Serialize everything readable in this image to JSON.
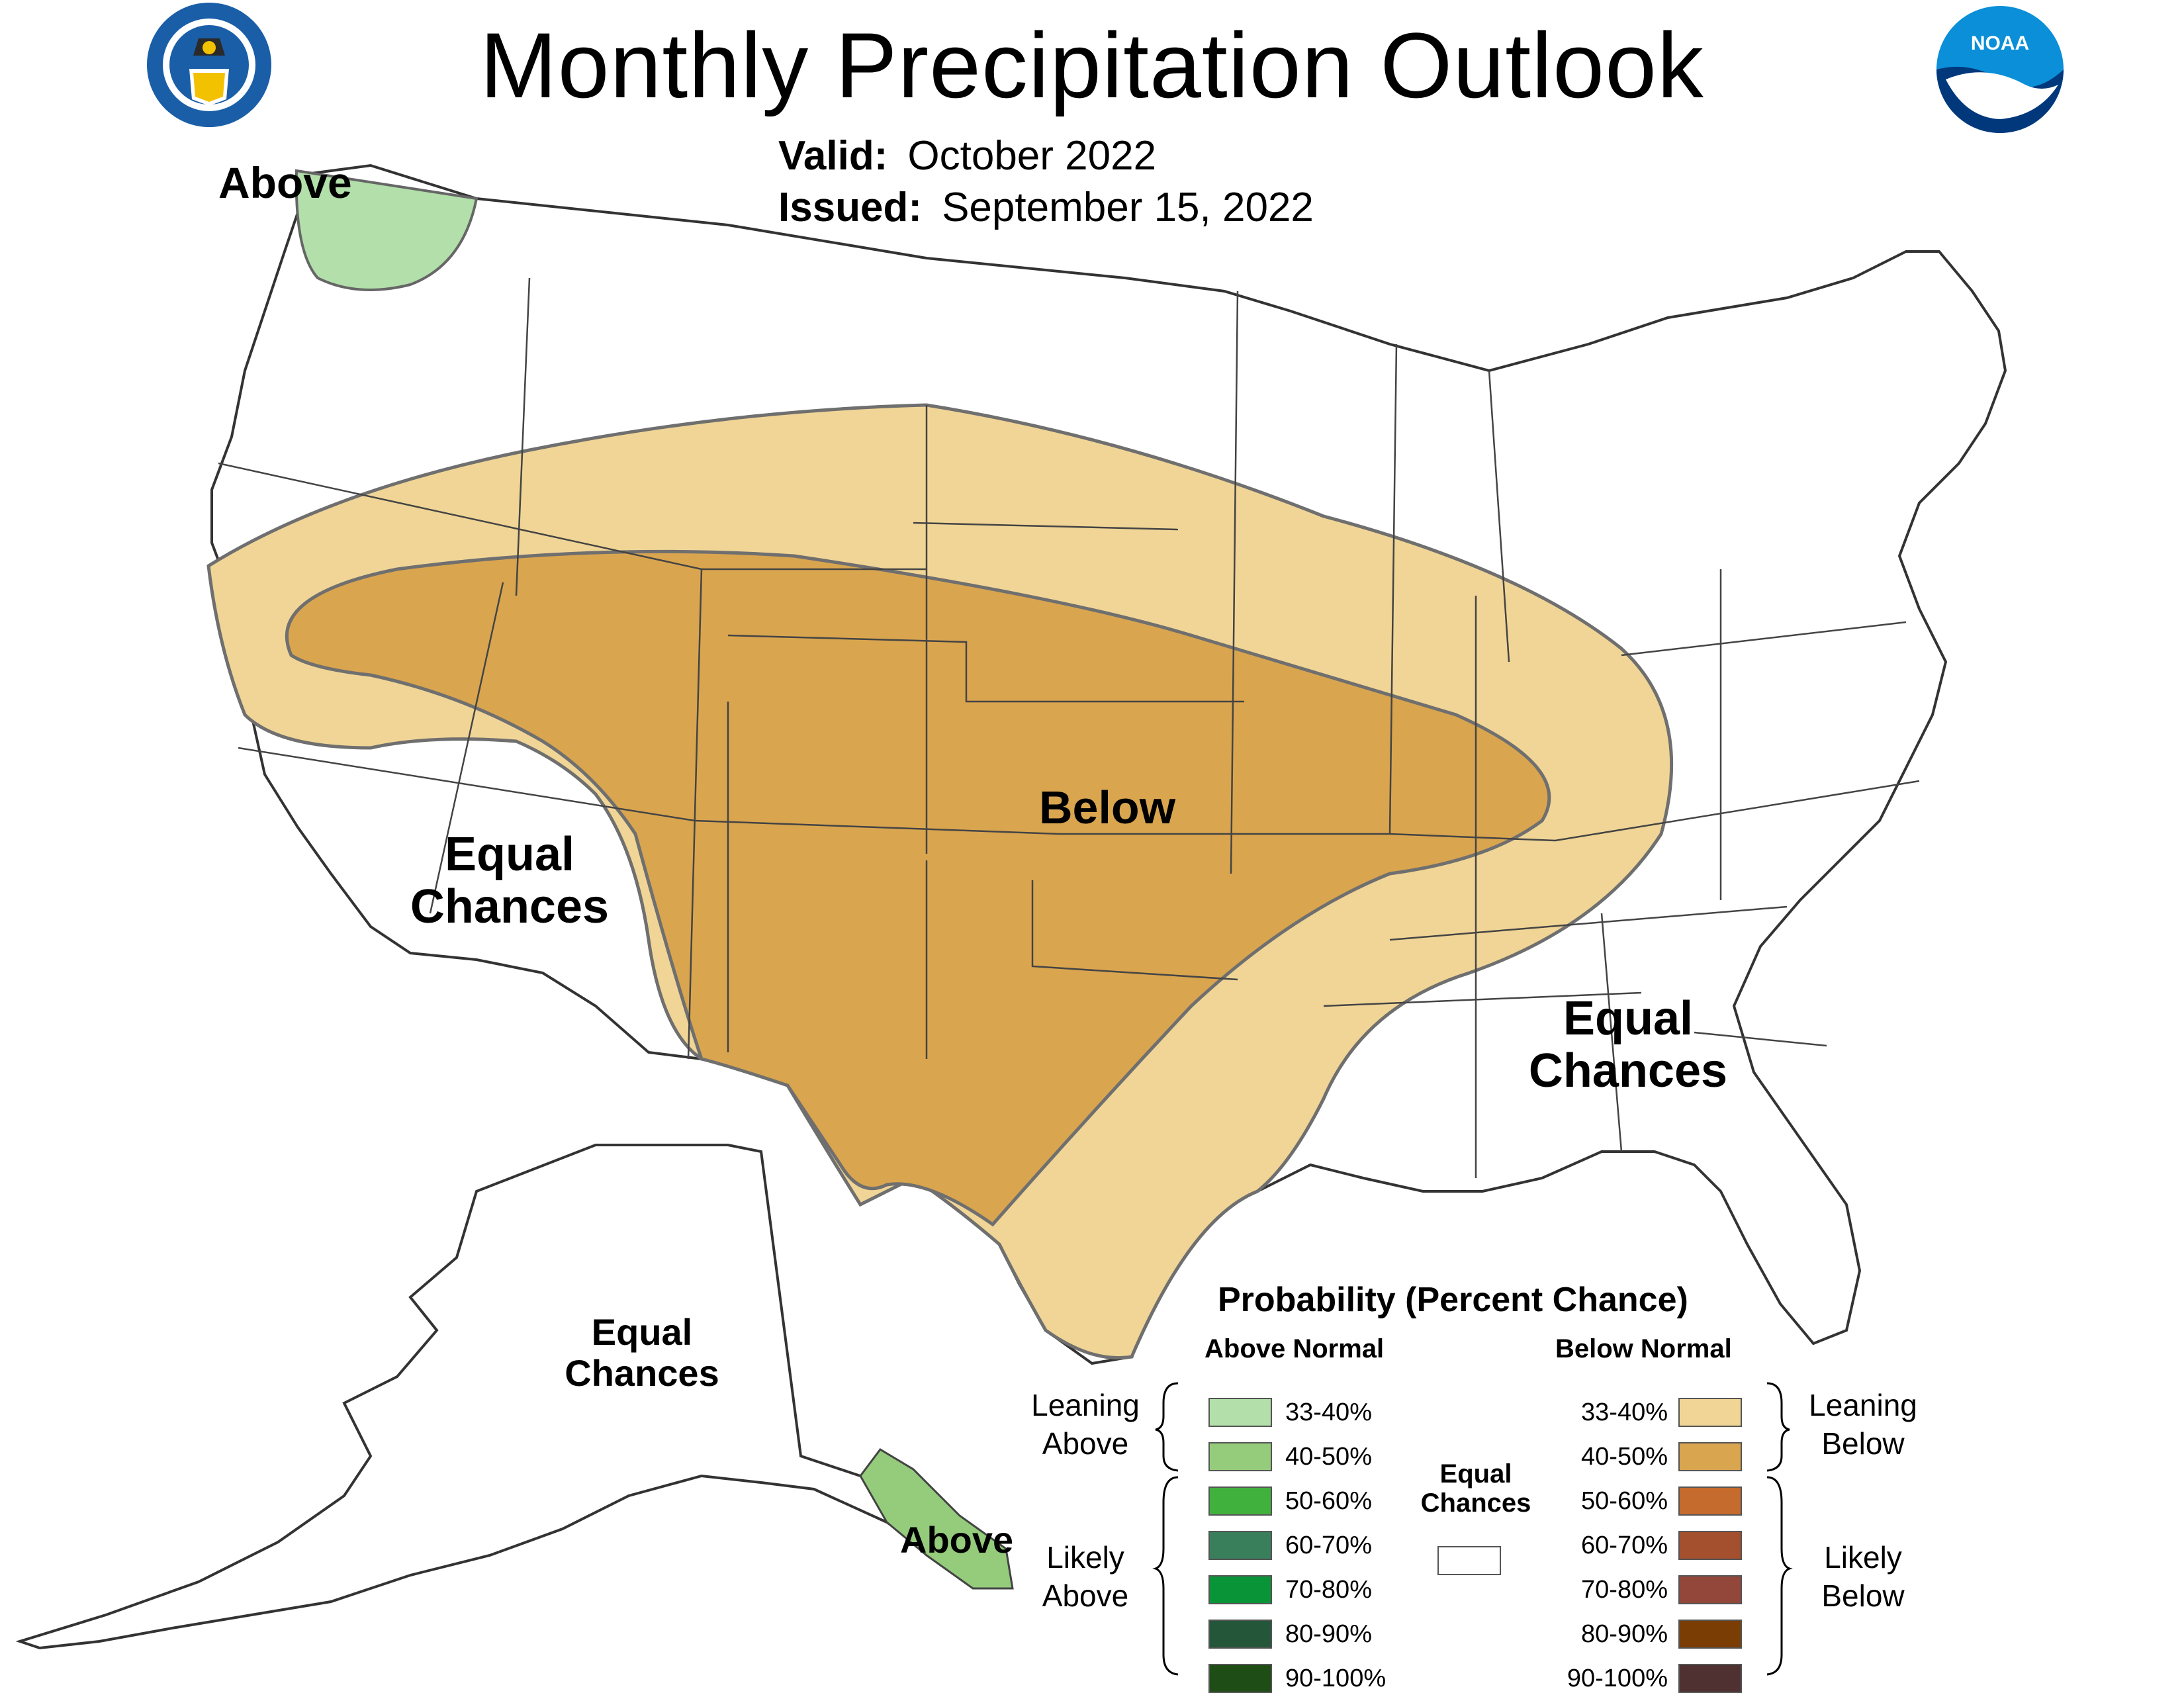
{
  "title": "Monthly Precipitation Outlook",
  "valid_label": "Valid:",
  "valid_value": "October 2022",
  "issued_label": "Issued:",
  "issued_value": "September 15, 2022",
  "logos": {
    "doc_seal": "department-of-commerce-seal",
    "noaa_logo": "noaa-logo",
    "noaa_text": "NOAA"
  },
  "map_labels": {
    "pnw_above": "Above",
    "below": "Below",
    "west_ec_1": "Equal",
    "west_ec_2": "Chances",
    "east_ec_1": "Equal",
    "east_ec_2": "Chances",
    "ak_ec_1": "Equal",
    "ak_ec_2": "Chances",
    "ak_above": "Above"
  },
  "legend": {
    "title": "Probability (Percent Chance)",
    "above_header": "Above Normal",
    "below_header": "Below Normal",
    "leaning_above_1": "Leaning",
    "leaning_above_2": "Above",
    "likely_above_1": "Likely",
    "likely_above_2": "Above",
    "leaning_below_1": "Leaning",
    "leaning_below_2": "Below",
    "likely_below_1": "Likely",
    "likely_below_2": "Below",
    "ec_1": "Equal",
    "ec_2": "Chances",
    "above_items": [
      {
        "label": "33-40%",
        "color": "#b2dfaa"
      },
      {
        "label": "40-50%",
        "color": "#95cc7c"
      },
      {
        "label": "50-60%",
        "color": "#41b13d"
      },
      {
        "label": "60-70%",
        "color": "#3a7f5c"
      },
      {
        "label": "70-80%",
        "color": "#0a9438"
      },
      {
        "label": "80-90%",
        "color": "#24573a"
      },
      {
        "label": "90-100%",
        "color": "#1f4d16"
      }
    ],
    "below_items": [
      {
        "label": "33-40%",
        "color": "#f0d596"
      },
      {
        "label": "40-50%",
        "color": "#d9a54f"
      },
      {
        "label": "50-60%",
        "color": "#c56b2d"
      },
      {
        "label": "60-70%",
        "color": "#a44f2e"
      },
      {
        "label": "70-80%",
        "color": "#93463a"
      },
      {
        "label": "80-90%",
        "color": "#7a3e05"
      },
      {
        "label": "90-100%",
        "color": "#4f3131"
      }
    ],
    "ec_color": "#ffffff"
  }
}
